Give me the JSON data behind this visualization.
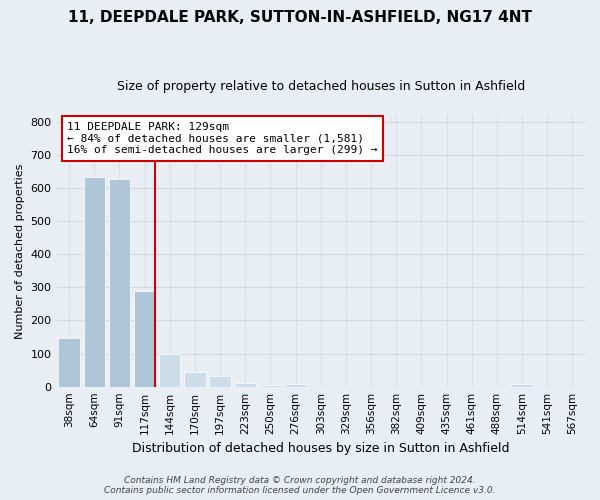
{
  "title": "11, DEEPDALE PARK, SUTTON-IN-ASHFIELD, NG17 4NT",
  "subtitle": "Size of property relative to detached houses in Sutton in Ashfield",
  "xlabel": "Distribution of detached houses by size in Sutton in Ashfield",
  "ylabel": "Number of detached properties",
  "bins": [
    "38sqm",
    "64sqm",
    "91sqm",
    "117sqm",
    "144sqm",
    "170sqm",
    "197sqm",
    "223sqm",
    "250sqm",
    "276sqm",
    "303sqm",
    "329sqm",
    "356sqm",
    "382sqm",
    "409sqm",
    "435sqm",
    "461sqm",
    "488sqm",
    "514sqm",
    "541sqm",
    "567sqm"
  ],
  "values": [
    148,
    632,
    628,
    288,
    100,
    45,
    31,
    12,
    6,
    7,
    0,
    0,
    0,
    0,
    0,
    0,
    0,
    0,
    8,
    0,
    0
  ],
  "bar_color_left": "#aec6d8",
  "bar_color_right": "#ccdce8",
  "property_line_color": "#cc0000",
  "property_bin_index": 3,
  "annotation_title": "11 DEEPDALE PARK: 129sqm",
  "annotation_line1": "← 84% of detached houses are smaller (1,581)",
  "annotation_line2": "16% of semi-detached houses are larger (299) →",
  "annotation_box_color": "#ffffff",
  "annotation_box_edge": "#cc0000",
  "footer_line1": "Contains HM Land Registry data © Crown copyright and database right 2024.",
  "footer_line2": "Contains public sector information licensed under the Open Government Licence v3.0.",
  "ylim": [
    0,
    820
  ],
  "yticks": [
    0,
    100,
    200,
    300,
    400,
    500,
    600,
    700,
    800
  ],
  "grid_color": "#d0d8e0",
  "bg_color": "#e8eef4",
  "title_fontsize": 11,
  "subtitle_fontsize": 9,
  "ylabel_fontsize": 8,
  "xlabel_fontsize": 9,
  "footer_fontsize": 6.5,
  "tick_fontsize": 7.5
}
